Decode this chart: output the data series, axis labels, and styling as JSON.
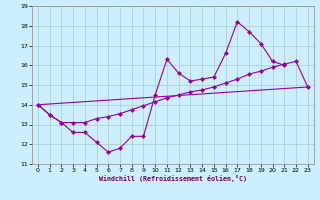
{
  "xlabel": "Windchill (Refroidissement éolien,°C)",
  "line_color": "#990099",
  "bg_color": "#cceeff",
  "grid_color": "#aacccc",
  "xlim": [
    -0.5,
    23.5
  ],
  "ylim": [
    11,
    19
  ],
  "xticks": [
    0,
    1,
    2,
    3,
    4,
    5,
    6,
    7,
    8,
    9,
    10,
    11,
    12,
    13,
    14,
    15,
    16,
    17,
    18,
    19,
    20,
    21,
    22,
    23
  ],
  "yticks": [
    11,
    12,
    13,
    14,
    15,
    16,
    17,
    18,
    19
  ],
  "line1_x": [
    0,
    1,
    2,
    3,
    4,
    5,
    6,
    7,
    8,
    9,
    10,
    11,
    12,
    13,
    14,
    15,
    16,
    17,
    18,
    19,
    20,
    21
  ],
  "line1_y": [
    14.0,
    13.5,
    13.1,
    12.6,
    12.6,
    12.1,
    11.6,
    11.8,
    12.4,
    12.4,
    14.5,
    16.3,
    15.6,
    15.2,
    15.3,
    15.4,
    16.6,
    18.2,
    17.7,
    17.1,
    16.2,
    16.0
  ],
  "line2_x": [
    0,
    1,
    2,
    3,
    4,
    5,
    6,
    7,
    8,
    9,
    10,
    11,
    12,
    13,
    14,
    15,
    16,
    17,
    18,
    19,
    20,
    21,
    22,
    23
  ],
  "line2_y": [
    14.0,
    13.5,
    13.1,
    13.1,
    13.1,
    13.3,
    13.4,
    13.55,
    13.75,
    13.95,
    14.15,
    14.35,
    14.5,
    14.65,
    14.75,
    14.9,
    15.1,
    15.3,
    15.55,
    15.7,
    15.9,
    16.05,
    16.2,
    14.9
  ],
  "line3_x": [
    0,
    23
  ],
  "line3_y": [
    14.0,
    14.9
  ],
  "markersize": 2.5
}
